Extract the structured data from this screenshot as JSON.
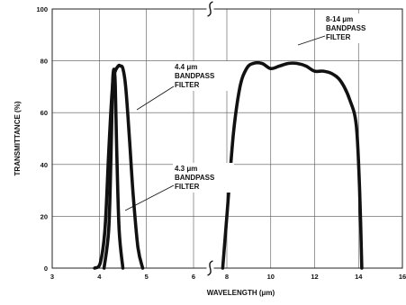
{
  "chart_data": {
    "type": "line",
    "xlabel": "WAVELENGTH (μm)",
    "ylabel": "TRANSMITTANCE (%)",
    "ylim": [
      0,
      100
    ],
    "x_ticks": [
      {
        "value": 3,
        "label": "3"
      },
      {
        "value": 4,
        "label": "4"
      },
      {
        "value": 5,
        "label": "5"
      },
      {
        "value": 6,
        "label": "6"
      },
      {
        "value": 8,
        "label": "8"
      },
      {
        "value": 10,
        "label": "10"
      },
      {
        "value": 12,
        "label": "12"
      },
      {
        "value": 14,
        "label": "14"
      },
      {
        "value": 16,
        "label": "16"
      }
    ],
    "y_ticks": [
      0,
      20,
      40,
      60,
      80,
      100
    ],
    "grid": true,
    "axis_break_between": [
      6,
      8
    ],
    "series": [
      {
        "name": "4.3 μm BANDPASS FILTER",
        "x": [
          4.1,
          4.2,
          4.25,
          4.28,
          4.3,
          4.32,
          4.34,
          4.37,
          4.42,
          4.5
        ],
        "y": [
          0,
          15,
          45,
          70,
          76,
          76,
          70,
          45,
          15,
          0
        ]
      },
      {
        "name": "4.4 μm BANDPASS FILTER",
        "x": [
          3.9,
          4.02,
          4.12,
          4.2,
          4.27,
          4.32,
          4.4,
          4.45,
          4.5,
          4.56,
          4.64,
          4.72,
          4.82,
          4.92
        ],
        "y": [
          0,
          2,
          15,
          45,
          68,
          75,
          78,
          78,
          77,
          70,
          50,
          28,
          8,
          0
        ]
      },
      {
        "name": "8-14 μm BANDPASS FILTER",
        "x": [
          7.75,
          8.0,
          8.3,
          8.6,
          8.9,
          9.2,
          9.6,
          10.0,
          10.4,
          10.8,
          11.2,
          11.6,
          12.0,
          12.4,
          12.8,
          13.2,
          13.6,
          13.9,
          14.05,
          14.15
        ],
        "y": [
          0,
          20,
          52,
          70,
          77,
          79,
          79,
          77,
          78,
          79,
          79,
          78,
          76,
          76,
          75,
          72,
          65,
          55,
          30,
          0
        ]
      }
    ],
    "annotations": [
      {
        "target": "4.4 μm BANDPASS FILTER",
        "lines": [
          "4.4 μm",
          "BANDPASS",
          "FILTER"
        ]
      },
      {
        "target": "4.3 μm BANDPASS FILTER",
        "lines": [
          "4.3 μm",
          "BANDPASS",
          "FILTER"
        ]
      },
      {
        "target": "8-14 μm BANDPASS FILTER",
        "lines": [
          "8-14 μm",
          "BANDPASS",
          "FILTER"
        ]
      }
    ]
  }
}
